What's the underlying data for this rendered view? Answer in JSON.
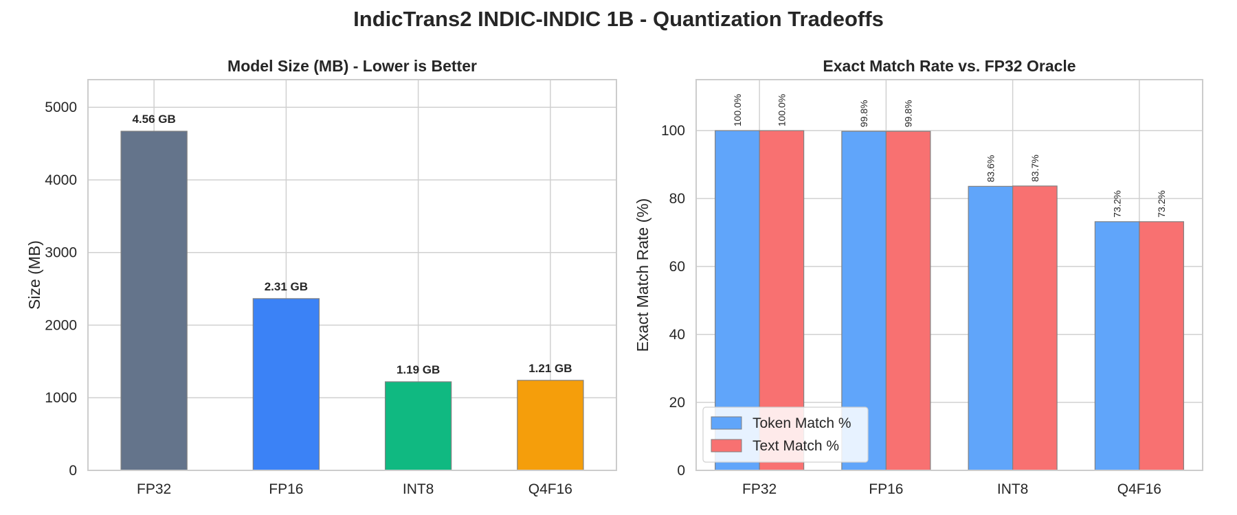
{
  "suptitle": "IndicTrans2 INDIC-INDIC 1B - Quantization Tradeoffs",
  "chart_data": [
    {
      "type": "bar",
      "title": "Model Size (MB) - Lower is Better",
      "xlabel": "",
      "ylabel": "Size (MB)",
      "categories": [
        "FP32",
        "FP16",
        "INT8",
        "Q4F16"
      ],
      "values": [
        4670,
        2365,
        1220,
        1240
      ],
      "data_labels": [
        "4.56 GB",
        "2.31 GB",
        "1.19 GB",
        "1.21 GB"
      ],
      "colors": [
        "#64748b",
        "#3b82f6",
        "#10b981",
        "#f59e0b"
      ],
      "yticks": [
        0,
        1000,
        2000,
        3000,
        4000,
        5000
      ],
      "ylim": [
        0,
        5380
      ],
      "grid": true
    },
    {
      "type": "bar",
      "title": "Exact Match Rate vs. FP32 Oracle",
      "xlabel": "",
      "ylabel": "Exact Match Rate (%)",
      "categories": [
        "FP32",
        "FP16",
        "INT8",
        "Q4F16"
      ],
      "series": [
        {
          "name": "Token Match %",
          "values": [
            100.0,
            99.8,
            83.6,
            73.2
          ],
          "data_labels": [
            "100.0%",
            "99.8%",
            "83.6%",
            "73.2%"
          ],
          "color": "#60a5fa"
        },
        {
          "name": "Text Match %",
          "values": [
            100.0,
            99.8,
            83.7,
            73.2
          ],
          "data_labels": [
            "100.0%",
            "99.8%",
            "83.7%",
            "73.2%"
          ],
          "color": "#f87171"
        }
      ],
      "yticks": [
        0,
        20,
        40,
        60,
        80,
        100
      ],
      "ylim": [
        0,
        115
      ],
      "legend_position": "lower-left",
      "grid": true
    }
  ]
}
